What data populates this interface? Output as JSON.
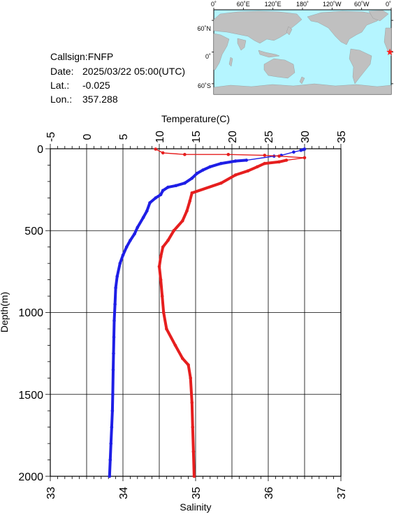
{
  "info": {
    "callsign": "Callsign:FNFP",
    "date_label": "Date:",
    "date_value": "2025/03/22 05:00(UTC)",
    "lat_label": "Lat.:",
    "lat_value": "-0.025",
    "lon_label": "Lon.:",
    "lon_value": "357.288"
  },
  "map": {
    "lon_ticks": [
      "0˚",
      "60˚E",
      "120˚E",
      "180˚",
      "120˚W",
      "60˚W",
      "0˚"
    ],
    "lat_ticks": [
      "60˚N",
      "0˚",
      "60˚S"
    ],
    "ocean_color": "#b5f5ff",
    "land_color": "#c0c0c0",
    "marker_color": "#ff2020",
    "marker_lon": 357.288,
    "marker_lat": -0.025
  },
  "chart_data": {
    "type": "line",
    "ylabel": "Depth(m)",
    "ylim": [
      0,
      2000
    ],
    "yticks": [
      "0",
      "500",
      "1000",
      "1500",
      "2000"
    ],
    "y_inverted": true,
    "grid": true,
    "temperature_axis": {
      "label": "Temperature(C)",
      "position": "top",
      "lim": [
        -5,
        35
      ],
      "ticks": [
        "-5",
        "0",
        "5",
        "10",
        "15",
        "20",
        "25",
        "30",
        "35"
      ]
    },
    "salinity_axis": {
      "label": "Salinity",
      "position": "bottom",
      "lim": [
        33,
        37
      ],
      "ticks": [
        "33",
        "34",
        "35",
        "36",
        "37"
      ]
    },
    "series": [
      {
        "axis": "temperature",
        "color": "#1e1ee6",
        "points": [
          [
            30.0,
            2
          ],
          [
            29.8,
            5
          ],
          [
            29.5,
            10
          ],
          [
            28.5,
            20
          ],
          [
            26.8,
            40
          ],
          [
            25.8,
            45
          ],
          [
            22.0,
            70
          ],
          [
            20.5,
            75
          ],
          [
            18.5,
            90
          ],
          [
            17.0,
            110
          ],
          [
            16.0,
            130
          ],
          [
            15.2,
            150
          ],
          [
            14.5,
            180
          ],
          [
            13.5,
            210
          ],
          [
            12.3,
            225
          ],
          [
            11.2,
            235
          ],
          [
            10.5,
            255
          ],
          [
            10.2,
            280
          ],
          [
            9.5,
            300
          ],
          [
            8.7,
            330
          ],
          [
            8.3,
            380
          ],
          [
            7.8,
            420
          ],
          [
            7.0,
            480
          ],
          [
            6.6,
            520
          ],
          [
            6.0,
            560
          ],
          [
            5.5,
            600
          ],
          [
            5.0,
            650
          ],
          [
            4.6,
            700
          ],
          [
            4.2,
            780
          ],
          [
            4.0,
            850
          ],
          [
            3.9,
            950
          ],
          [
            3.8,
            1050
          ],
          [
            3.75,
            1150
          ],
          [
            3.7,
            1250
          ],
          [
            3.65,
            1350
          ],
          [
            3.6,
            1500
          ],
          [
            3.55,
            1600
          ],
          [
            3.45,
            1700
          ],
          [
            3.35,
            1800
          ],
          [
            3.25,
            1900
          ],
          [
            3.15,
            2000
          ]
        ]
      },
      {
        "axis": "salinity",
        "color": "#e61e1e",
        "points": [
          [
            34.45,
            2
          ],
          [
            34.55,
            25
          ],
          [
            34.85,
            35
          ],
          [
            35.45,
            35
          ],
          [
            35.95,
            40
          ],
          [
            36.15,
            45
          ],
          [
            36.5,
            55
          ],
          [
            36.25,
            70
          ],
          [
            36.15,
            80
          ],
          [
            35.95,
            90
          ],
          [
            35.85,
            110
          ],
          [
            35.72,
            135
          ],
          [
            35.55,
            160
          ],
          [
            35.35,
            210
          ],
          [
            34.95,
            270
          ],
          [
            34.92,
            320
          ],
          [
            34.88,
            380
          ],
          [
            34.82,
            440
          ],
          [
            34.7,
            500
          ],
          [
            34.62,
            560
          ],
          [
            34.55,
            600
          ],
          [
            34.52,
            660
          ],
          [
            34.5,
            720
          ],
          [
            34.52,
            800
          ],
          [
            34.54,
            900
          ],
          [
            34.56,
            1000
          ],
          [
            34.6,
            1100
          ],
          [
            34.72,
            1200
          ],
          [
            34.82,
            1280
          ],
          [
            34.9,
            1320
          ],
          [
            34.93,
            1400
          ],
          [
            34.95,
            1550
          ],
          [
            34.96,
            1700
          ],
          [
            34.97,
            1850
          ],
          [
            34.98,
            2000
          ]
        ]
      }
    ]
  }
}
